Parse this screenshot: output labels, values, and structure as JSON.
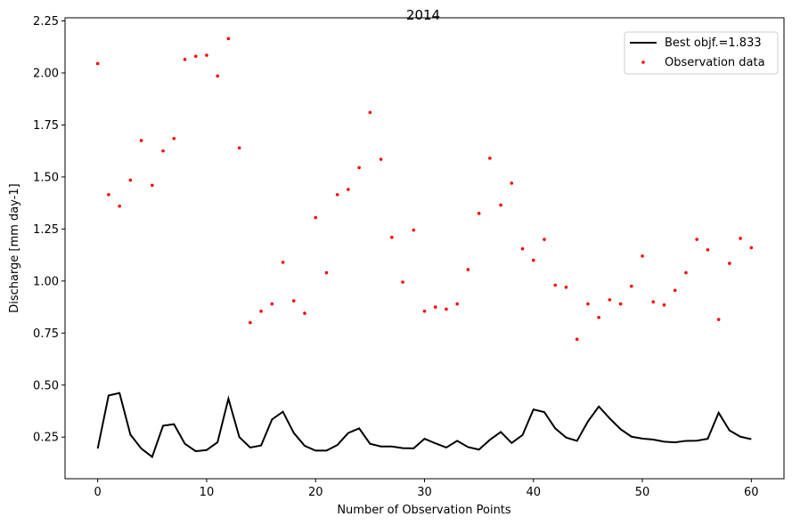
{
  "chart_data": {
    "type": "line",
    "title": "2014",
    "xlabel": "Number of Observation Points",
    "ylabel": "Discharge [mm day-1]",
    "xlim": [
      -3.0,
      63.0
    ],
    "ylim": [
      0.05,
      2.265
    ],
    "xticks": [
      0,
      10,
      20,
      30,
      40,
      50,
      60
    ],
    "xtick_labels": [
      "0",
      "10",
      "20",
      "30",
      "40",
      "50",
      "60"
    ],
    "yticks": [
      0.25,
      0.5,
      0.75,
      1.0,
      1.25,
      1.5,
      1.75,
      2.0,
      2.25
    ],
    "ytick_labels": [
      "0.25",
      "0.50",
      "0.75",
      "1.00",
      "1.25",
      "1.50",
      "1.75",
      "2.00",
      "2.25"
    ],
    "grid": false,
    "legend_position": "top-right",
    "series": [
      {
        "name": "Best objf.=1.833",
        "style": "line",
        "color": "#000000",
        "x": [
          0,
          1,
          2,
          3,
          4,
          5,
          6,
          7,
          8,
          9,
          10,
          11,
          12,
          13,
          14,
          15,
          16,
          17,
          18,
          19,
          20,
          21,
          22,
          23,
          24,
          25,
          26,
          27,
          28,
          29,
          30,
          31,
          32,
          33,
          34,
          35,
          36,
          37,
          38,
          39,
          40,
          41,
          42,
          43,
          44,
          45,
          46,
          47,
          48,
          49,
          50,
          51,
          52,
          53,
          54,
          55,
          56,
          57,
          58,
          59,
          60
        ],
        "values": [
          0.195,
          0.45,
          0.462,
          0.262,
          0.195,
          0.155,
          0.305,
          0.312,
          0.218,
          0.182,
          0.188,
          0.225,
          0.435,
          0.25,
          0.2,
          0.21,
          0.335,
          0.372,
          0.27,
          0.208,
          0.185,
          0.185,
          0.212,
          0.27,
          0.292,
          0.218,
          0.205,
          0.205,
          0.197,
          0.196,
          0.242,
          0.22,
          0.2,
          0.232,
          0.202,
          0.19,
          0.237,
          0.275,
          0.222,
          0.26,
          0.383,
          0.37,
          0.292,
          0.248,
          0.232,
          0.325,
          0.397,
          0.34,
          0.288,
          0.252,
          0.243,
          0.238,
          0.228,
          0.225,
          0.232,
          0.233,
          0.242,
          0.367,
          0.282,
          0.252,
          0.24
        ]
      },
      {
        "name": "Observation data",
        "style": "points",
        "color": "#ff0000",
        "x": [
          0,
          1,
          2,
          3,
          4,
          5,
          6,
          7,
          8,
          9,
          10,
          11,
          12,
          13,
          14,
          15,
          16,
          17,
          18,
          19,
          20,
          21,
          22,
          23,
          24,
          25,
          26,
          27,
          28,
          29,
          30,
          31,
          32,
          33,
          34,
          35,
          36,
          37,
          38,
          39,
          40,
          41,
          42,
          43,
          44,
          45,
          46,
          47,
          48,
          49,
          50,
          51,
          52,
          53,
          54,
          55,
          56,
          57,
          58,
          59,
          60
        ],
        "values": [
          2.045,
          1.415,
          1.36,
          1.485,
          1.675,
          1.46,
          1.625,
          1.685,
          2.065,
          2.08,
          2.085,
          1.985,
          2.165,
          1.64,
          0.8,
          0.855,
          0.89,
          1.09,
          0.905,
          0.845,
          1.305,
          1.04,
          1.415,
          1.44,
          1.545,
          1.81,
          1.585,
          1.21,
          0.995,
          1.245,
          0.855,
          0.875,
          0.865,
          0.89,
          1.055,
          1.325,
          1.59,
          1.365,
          1.47,
          1.155,
          1.1,
          1.2,
          0.98,
          0.97,
          0.72,
          0.89,
          0.825,
          0.91,
          0.89,
          0.975,
          1.12,
          0.9,
          0.885,
          0.955,
          1.04,
          1.2,
          1.15,
          0.815,
          1.085,
          1.205,
          1.16
        ]
      }
    ]
  }
}
